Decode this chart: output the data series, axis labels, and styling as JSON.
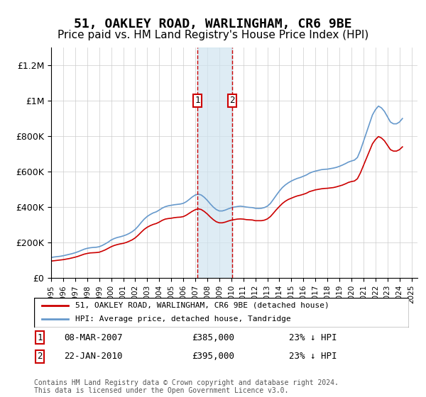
{
  "title": "51, OAKLEY ROAD, WARLINGHAM, CR6 9BE",
  "subtitle": "Price paid vs. HM Land Registry's House Price Index (HPI)",
  "ylabel": "",
  "xlabel": "",
  "ylim": [
    0,
    1300000
  ],
  "yticks": [
    0,
    200000,
    400000,
    600000,
    800000,
    1000000,
    1200000
  ],
  "ytick_labels": [
    "£0",
    "£200K",
    "£400K",
    "£600K",
    "£800K",
    "£1M",
    "£1.2M"
  ],
  "title_fontsize": 13,
  "subtitle_fontsize": 11,
  "background_color": "#ffffff",
  "grid_color": "#cccccc",
  "transaction1_date": 2007.18,
  "transaction1_price": 385000,
  "transaction1_label": "1",
  "transaction1_display": "08-MAR-2007",
  "transaction1_amount": "£385,000",
  "transaction1_hpi": "23% ↓ HPI",
  "transaction2_date": 2010.07,
  "transaction2_price": 395000,
  "transaction2_label": "2",
  "transaction2_display": "22-JAN-2010",
  "transaction2_amount": "£395,000",
  "transaction2_hpi": "23% ↓ HPI",
  "hpi_line_color": "#6699cc",
  "price_line_color": "#cc0000",
  "marker_color": "#cc0000",
  "shade_color": "#d0e4f0",
  "legend_label_price": "51, OAKLEY ROAD, WARLINGHAM, CR6 9BE (detached house)",
  "legend_label_hpi": "HPI: Average price, detached house, Tandridge",
  "footer": "Contains HM Land Registry data © Crown copyright and database right 2024.\nThis data is licensed under the Open Government Licence v3.0.",
  "hpi_years": [
    1995,
    1995.25,
    1995.5,
    1995.75,
    1996,
    1996.25,
    1996.5,
    1996.75,
    1997,
    1997.25,
    1997.5,
    1997.75,
    1998,
    1998.25,
    1998.5,
    1998.75,
    1999,
    1999.25,
    1999.5,
    1999.75,
    2000,
    2000.25,
    2000.5,
    2000.75,
    2001,
    2001.25,
    2001.5,
    2001.75,
    2002,
    2002.25,
    2002.5,
    2002.75,
    2003,
    2003.25,
    2003.5,
    2003.75,
    2004,
    2004.25,
    2004.5,
    2004.75,
    2005,
    2005.25,
    2005.5,
    2005.75,
    2006,
    2006.25,
    2006.5,
    2006.75,
    2007,
    2007.25,
    2007.5,
    2007.75,
    2008,
    2008.25,
    2008.5,
    2008.75,
    2009,
    2009.25,
    2009.5,
    2009.75,
    2010,
    2010.25,
    2010.5,
    2010.75,
    2011,
    2011.25,
    2011.5,
    2011.75,
    2012,
    2012.25,
    2012.5,
    2012.75,
    2013,
    2013.25,
    2013.5,
    2013.75,
    2014,
    2014.25,
    2014.5,
    2014.75,
    2015,
    2015.25,
    2015.5,
    2015.75,
    2016,
    2016.25,
    2016.5,
    2016.75,
    2017,
    2017.25,
    2017.5,
    2017.75,
    2018,
    2018.25,
    2018.5,
    2018.75,
    2019,
    2019.25,
    2019.5,
    2019.75,
    2020,
    2020.25,
    2020.5,
    2020.75,
    2021,
    2021.25,
    2021.5,
    2021.75,
    2022,
    2022.25,
    2022.5,
    2022.75,
    2023,
    2023.25,
    2023.5,
    2023.75,
    2024,
    2024.25
  ],
  "hpi_values": [
    115000,
    118000,
    120000,
    122000,
    125000,
    129000,
    133000,
    137000,
    142000,
    148000,
    155000,
    162000,
    167000,
    170000,
    172000,
    173000,
    176000,
    183000,
    192000,
    202000,
    214000,
    222000,
    228000,
    232000,
    237000,
    243000,
    251000,
    261000,
    274000,
    292000,
    313000,
    332000,
    347000,
    358000,
    367000,
    373000,
    383000,
    394000,
    402000,
    407000,
    410000,
    413000,
    415000,
    417000,
    421000,
    430000,
    443000,
    457000,
    468000,
    473000,
    468000,
    455000,
    438000,
    418000,
    400000,
    386000,
    378000,
    378000,
    383000,
    390000,
    396000,
    400000,
    403000,
    405000,
    403000,
    400000,
    398000,
    397000,
    393000,
    392000,
    393000,
    397000,
    405000,
    420000,
    443000,
    467000,
    490000,
    510000,
    525000,
    537000,
    547000,
    555000,
    562000,
    567000,
    574000,
    581000,
    591000,
    598000,
    603000,
    607000,
    611000,
    613000,
    614000,
    617000,
    620000,
    624000,
    630000,
    637000,
    645000,
    654000,
    660000,
    665000,
    680000,
    720000,
    770000,
    820000,
    870000,
    920000,
    950000,
    970000,
    960000,
    940000,
    910000,
    880000,
    870000,
    870000,
    880000,
    900000
  ],
  "price_years": [
    1995,
    1995.25,
    1995.5,
    1995.75,
    1996,
    1996.25,
    1996.5,
    1996.75,
    1997,
    1997.25,
    1997.5,
    1997.75,
    1998,
    1998.25,
    1998.5,
    1998.75,
    1999,
    1999.25,
    1999.5,
    1999.75,
    2000,
    2000.25,
    2000.5,
    2000.75,
    2001,
    2001.25,
    2001.5,
    2001.75,
    2002,
    2002.25,
    2002.5,
    2002.75,
    2003,
    2003.25,
    2003.5,
    2003.75,
    2004,
    2004.25,
    2004.5,
    2004.75,
    2005,
    2005.25,
    2005.5,
    2005.75,
    2006,
    2006.25,
    2006.5,
    2006.75,
    2007,
    2007.25,
    2007.5,
    2007.75,
    2008,
    2008.25,
    2008.5,
    2008.75,
    2009,
    2009.25,
    2009.5,
    2009.75,
    2010,
    2010.25,
    2010.5,
    2010.75,
    2011,
    2011.25,
    2011.5,
    2011.75,
    2012,
    2012.25,
    2012.5,
    2012.75,
    2013,
    2013.25,
    2013.5,
    2013.75,
    2014,
    2014.25,
    2014.5,
    2014.75,
    2015,
    2015.25,
    2015.5,
    2015.75,
    2016,
    2016.25,
    2016.5,
    2016.75,
    2017,
    2017.25,
    2017.5,
    2017.75,
    2018,
    2018.25,
    2018.5,
    2018.75,
    2019,
    2019.25,
    2019.5,
    2019.75,
    2020,
    2020.25,
    2020.5,
    2020.75,
    2021,
    2021.25,
    2021.5,
    2021.75,
    2022,
    2022.25,
    2022.5,
    2022.75,
    2023,
    2023.25,
    2023.5,
    2023.75,
    2024,
    2024.25
  ],
  "price_values": [
    95000,
    97000,
    99000,
    101000,
    103000,
    106000,
    109000,
    113000,
    117000,
    122000,
    128000,
    134000,
    138000,
    141000,
    142000,
    143000,
    145000,
    151000,
    158000,
    167000,
    176000,
    183000,
    188000,
    192000,
    195000,
    200000,
    207000,
    215000,
    226000,
    241000,
    258000,
    274000,
    286000,
    295000,
    302000,
    307000,
    315000,
    325000,
    332000,
    335000,
    337000,
    340000,
    342000,
    343000,
    346000,
    354000,
    365000,
    376000,
    385000,
    390000,
    386000,
    375000,
    361000,
    344000,
    329000,
    317000,
    311000,
    311000,
    315000,
    321000,
    326000,
    329000,
    332000,
    333000,
    332000,
    329000,
    328000,
    327000,
    323000,
    323000,
    323000,
    326000,
    333000,
    346000,
    365000,
    385000,
    403000,
    420000,
    433000,
    443000,
    450000,
    457000,
    463000,
    467000,
    472000,
    478000,
    487000,
    492000,
    497000,
    500000,
    503000,
    505000,
    506000,
    508000,
    510000,
    514000,
    519000,
    524000,
    531000,
    539000,
    544000,
    547000,
    560000,
    593000,
    634000,
    675000,
    716000,
    757000,
    781000,
    798000,
    790000,
    774000,
    749000,
    724000,
    716000,
    716000,
    724000,
    740000
  ]
}
